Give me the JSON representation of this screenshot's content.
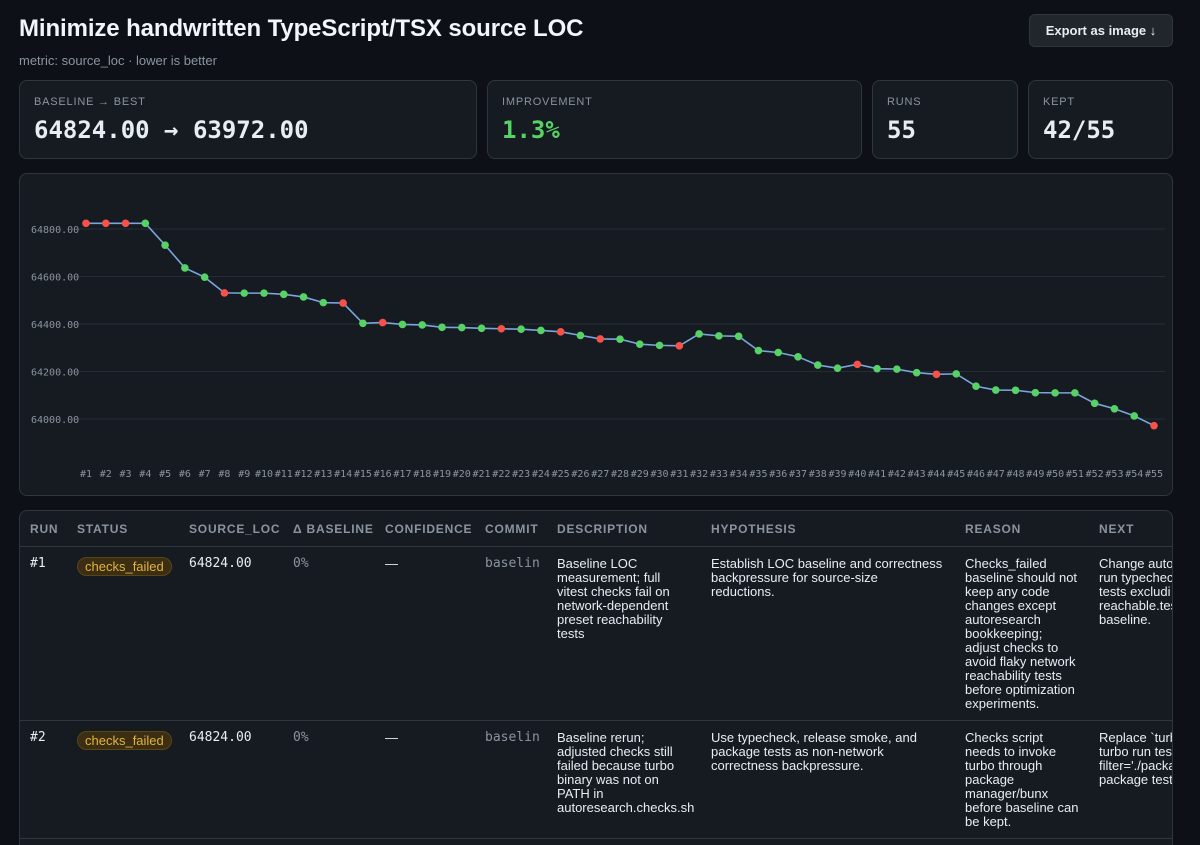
{
  "header": {
    "title": "Minimize handwritten TypeScript/TSX source LOC",
    "subtitle": "metric: source_loc · lower is better",
    "export_label": "Export as image ↓"
  },
  "stats": {
    "baseline_best": {
      "label": "BASELINE → BEST",
      "value": "64824.00 → 63972.00"
    },
    "improvement": {
      "label": "IMPROVEMENT",
      "value": "1.3%"
    },
    "runs": {
      "label": "RUNS",
      "value": "55"
    },
    "kept": {
      "label": "KEPT",
      "value": "42/55"
    }
  },
  "colors": {
    "kept": "#56d364",
    "failed": "#f85149",
    "line": "#79a6dc",
    "accent_green": "#56d364",
    "badge": "#e3b341"
  },
  "chart_data": {
    "type": "line",
    "x": [
      "#1",
      "#2",
      "#3",
      "#4",
      "#5",
      "#6",
      "#7",
      "#8",
      "#9",
      "#10",
      "#11",
      "#12",
      "#13",
      "#14",
      "#15",
      "#16",
      "#17",
      "#18",
      "#19",
      "#20",
      "#21",
      "#22",
      "#23",
      "#24",
      "#25",
      "#26",
      "#27",
      "#28",
      "#29",
      "#30",
      "#31",
      "#32",
      "#33",
      "#34",
      "#35",
      "#36",
      "#37",
      "#38",
      "#39",
      "#40",
      "#41",
      "#42",
      "#43",
      "#44",
      "#45",
      "#46",
      "#47",
      "#48",
      "#49",
      "#50",
      "#51",
      "#52",
      "#53",
      "#54",
      "#55"
    ],
    "series": [
      {
        "values": [
          64824,
          64824,
          64824,
          64824,
          64732,
          64636,
          64597,
          64531,
          64530,
          64530,
          64525,
          64514,
          64490,
          64488,
          64403,
          64406,
          64398,
          64396,
          64386,
          64385,
          64382,
          64380,
          64378,
          64373,
          64367,
          64352,
          64337,
          64336,
          64315,
          64310,
          64308,
          64358,
          64350,
          64348,
          64288,
          64280,
          64262,
          64227,
          64214,
          64230,
          64212,
          64210,
          64195,
          64188,
          64190,
          64138,
          64122,
          64121,
          64111,
          64110,
          64110,
          64066,
          64043,
          64013,
          63972
        ],
        "status": [
          "failed",
          "failed",
          "failed",
          "kept",
          "kept",
          "kept",
          "kept",
          "failed",
          "kept",
          "kept",
          "kept",
          "kept",
          "kept",
          "failed",
          "kept",
          "failed",
          "kept",
          "kept",
          "kept",
          "kept",
          "kept",
          "failed",
          "kept",
          "kept",
          "failed",
          "kept",
          "failed",
          "kept",
          "kept",
          "kept",
          "failed",
          "kept",
          "kept",
          "kept",
          "kept",
          "kept",
          "kept",
          "kept",
          "kept",
          "failed",
          "kept",
          "kept",
          "kept",
          "failed",
          "kept",
          "kept",
          "kept",
          "kept",
          "kept",
          "kept",
          "kept",
          "kept",
          "kept",
          "kept",
          "failed"
        ]
      }
    ],
    "yticks": [
      "64000.00",
      "64200.00",
      "64400.00",
      "64600.00",
      "64800.00"
    ],
    "ylim": [
      63890,
      64880
    ],
    "grid": true
  },
  "table": {
    "headers": [
      "RUN",
      "STATUS",
      "SOURCE_LOC",
      "Δ BASELINE",
      "CONFIDENCE",
      "COMMIT",
      "DESCRIPTION",
      "HYPOTHESIS",
      "REASON",
      "NEXT"
    ],
    "rows": [
      {
        "run": "#1",
        "status": "checks_failed",
        "source_loc": "64824.00",
        "delta": "0%",
        "confidence": "—",
        "commit": "baselin",
        "description": "Baseline LOC measurement; full vitest checks fail on network-dependent preset reachability tests",
        "hypothesis": "Establish LOC baseline and correctness backpressure for source-size reductions.",
        "reason": "Checks_failed baseline should not keep any code changes except autoresearch bookkeeping; adjust checks to avoid flaky network reachability tests before optimization experiments.",
        "next": [
          "Change autor",
          "run typechec",
          "tests excludi",
          "reachable.tes",
          "baseline."
        ]
      },
      {
        "run": "#2",
        "status": "checks_failed",
        "source_loc": "64824.00",
        "delta": "0%",
        "confidence": "—",
        "commit": "baselin",
        "description": "Baseline rerun; adjusted checks still failed because turbo binary was not on PATH in autoresearch.checks.sh",
        "hypothesis": "Use typecheck, release smoke, and package tests as non-network correctness backpressure.",
        "reason": "Checks script needs to invoke turbo through package manager/bunx before baseline can be kept.",
        "next": [
          "Replace `turb",
          "turbo run test",
          "filter='./packa",
          "package tests"
        ]
      }
    ]
  }
}
